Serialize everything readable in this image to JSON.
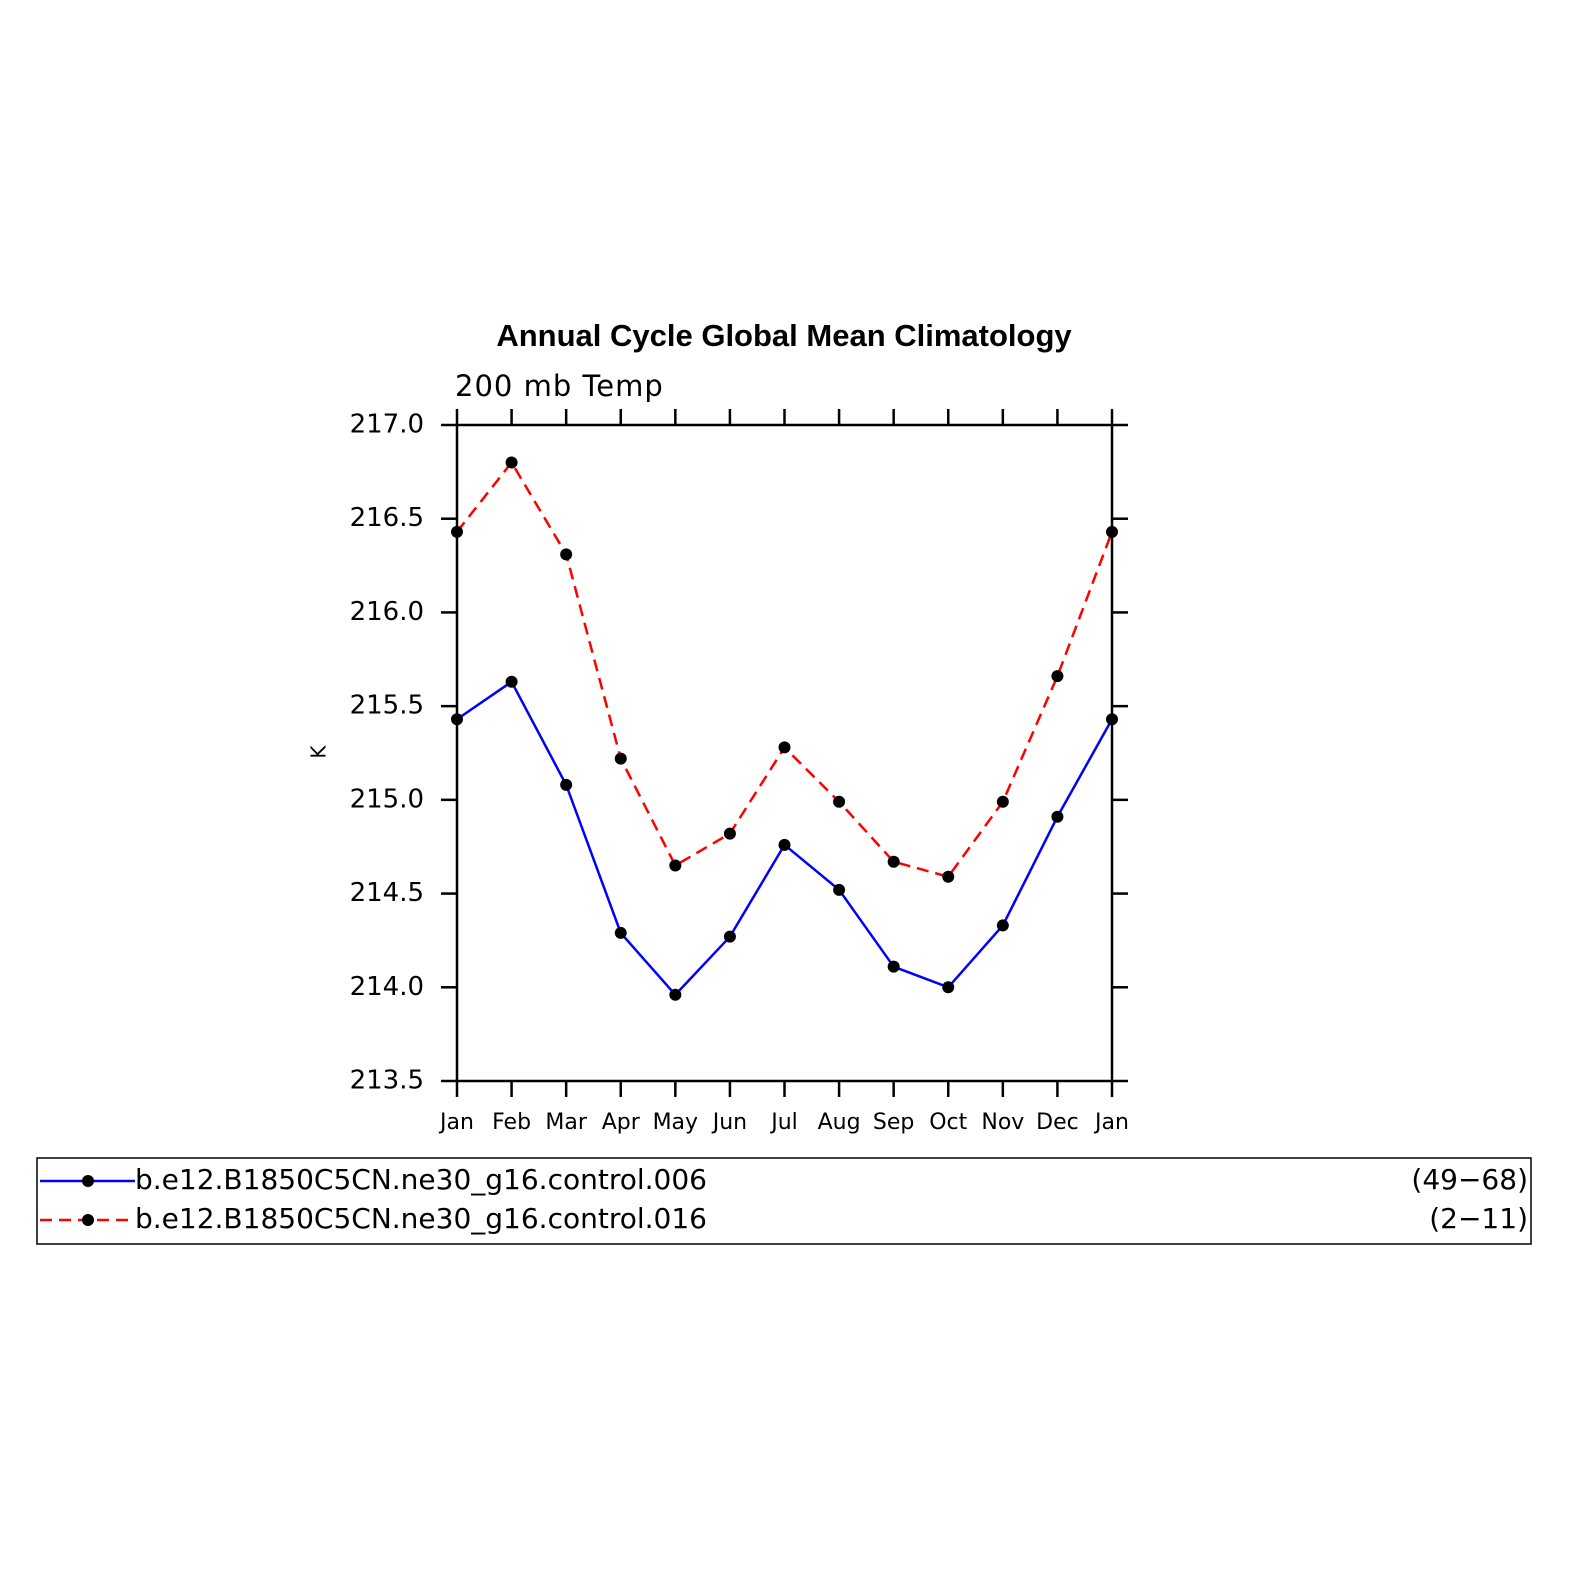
{
  "chart_data": {
    "type": "line",
    "title": "Annual Cycle Global Mean Climatology",
    "subtitle": "200 mb Temp",
    "y_label": "K",
    "categories": [
      "Jan",
      "Feb",
      "Mar",
      "Apr",
      "May",
      "Jun",
      "Jul",
      "Aug",
      "Sep",
      "Oct",
      "Nov",
      "Dec",
      "Jan"
    ],
    "series": [
      {
        "name": "b.e12.B1850C5CN.ne30_g16.control.006",
        "years": "(49−68)",
        "color": "#0000ff",
        "dashed": false,
        "values": [
          215.43,
          215.63,
          215.08,
          214.29,
          213.96,
          214.27,
          214.76,
          214.52,
          214.11,
          214.0,
          214.33,
          214.91,
          215.43
        ]
      },
      {
        "name": "b.e12.B1850C5CN.ne30_g16.control.016",
        "years": "(2−11)",
        "color": "#ff0000",
        "dashed": true,
        "values": [
          216.43,
          216.8,
          216.31,
          215.22,
          214.65,
          214.82,
          215.28,
          214.99,
          214.67,
          214.59,
          214.99,
          215.66,
          216.43
        ]
      }
    ],
    "ylim": [
      213.5,
      217.0
    ],
    "yticks": [
      {
        "value": 213.5,
        "label": "213.5"
      },
      {
        "value": 214.0,
        "label": "214.0"
      },
      {
        "value": 214.5,
        "label": "214.5"
      },
      {
        "value": 215.0,
        "label": "215.0"
      },
      {
        "value": 215.5,
        "label": "215.5"
      },
      {
        "value": 216.0,
        "label": "216.0"
      },
      {
        "value": 216.5,
        "label": "216.5"
      },
      {
        "value": 217.0,
        "label": "217.0"
      }
    ],
    "marker_color": "#000000"
  }
}
